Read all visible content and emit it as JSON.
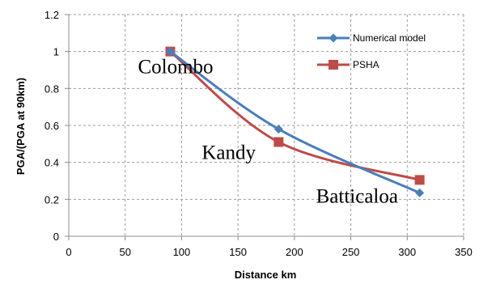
{
  "chart_data": {
    "type": "line",
    "xlabel": "Distance km",
    "ylabel": "PGA/(PGA at 90km)",
    "xlim": [
      0,
      350
    ],
    "ylim": [
      0,
      1.2
    ],
    "xticks": [
      0,
      50,
      100,
      150,
      200,
      250,
      300,
      350
    ],
    "yticks": [
      0,
      0.2,
      0.4,
      0.6,
      0.8,
      1,
      1.2
    ],
    "x_tick_labels": [
      "0",
      "50",
      "100",
      "150",
      "200",
      "250",
      "300",
      "350"
    ],
    "y_tick_labels": [
      "0",
      "0.2",
      "0.4",
      "0.6",
      "0.8",
      "1",
      "1.2"
    ],
    "grid": true,
    "legend_position": "top-right",
    "series": [
      {
        "name": "Numerical model",
        "color": "#4a7ebb",
        "marker": "diamond",
        "x": [
          90,
          186,
          311
        ],
        "y": [
          1.0,
          0.58,
          0.235
        ]
      },
      {
        "name": "PSHA",
        "color": "#be4b48",
        "marker": "square",
        "x": [
          90,
          186,
          311
        ],
        "y": [
          1.0,
          0.51,
          0.305
        ]
      }
    ],
    "annotations": [
      {
        "text": "Colombo",
        "x": 90,
        "y": 1.0
      },
      {
        "text": "Kandy",
        "x": 186,
        "y": 0.51
      },
      {
        "text": "Batticaloa",
        "x": 311,
        "y": 0.235
      }
    ]
  }
}
